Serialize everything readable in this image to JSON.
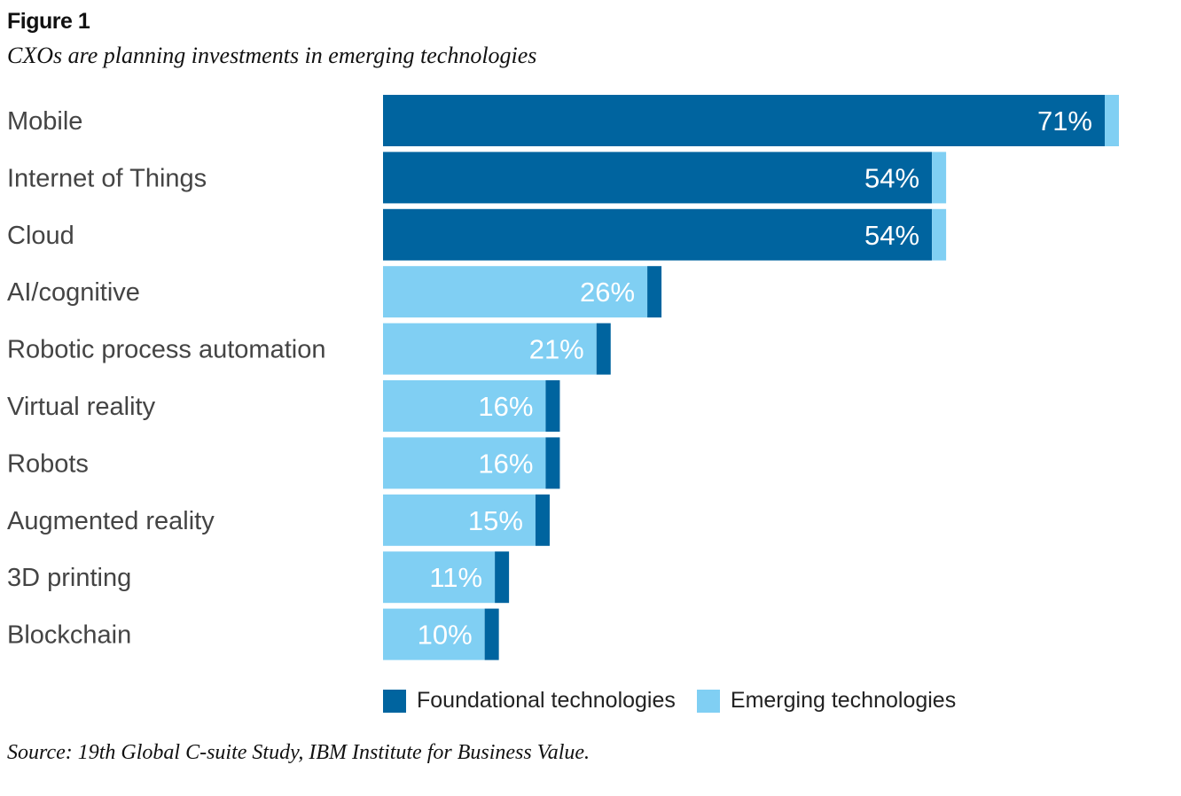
{
  "figure_label": "Figure 1",
  "subtitle": "CXOs are planning investments in emerging technologies",
  "source": "Source: 19th Global C-suite Study, IBM Institute for Business Value.",
  "colors": {
    "foundational": "#00649f",
    "emerging": "#80cff3"
  },
  "chart_data": {
    "type": "bar",
    "orientation": "horizontal",
    "categories": [
      "Mobile",
      "Internet of Things",
      "Cloud",
      "AI/cognitive",
      "Robotic process automation",
      "Virtual reality",
      "Robots",
      "Augmented reality",
      "3D printing",
      "Blockchain"
    ],
    "values": [
      71,
      54,
      54,
      26,
      21,
      16,
      16,
      15,
      11,
      10
    ],
    "data_labels": [
      "71%",
      "54%",
      "54%",
      "26%",
      "21%",
      "16%",
      "16%",
      "15%",
      "11%",
      "10%"
    ],
    "group": [
      "Foundational technologies",
      "Foundational technologies",
      "Foundational technologies",
      "Emerging technologies",
      "Emerging technologies",
      "Emerging technologies",
      "Emerging technologies",
      "Emerging technologies",
      "Emerging technologies",
      "Emerging technologies"
    ],
    "legend": [
      "Foundational technologies",
      "Emerging technologies"
    ],
    "legend_position": "bottom",
    "grid": false,
    "xlim": [
      0,
      71
    ]
  }
}
